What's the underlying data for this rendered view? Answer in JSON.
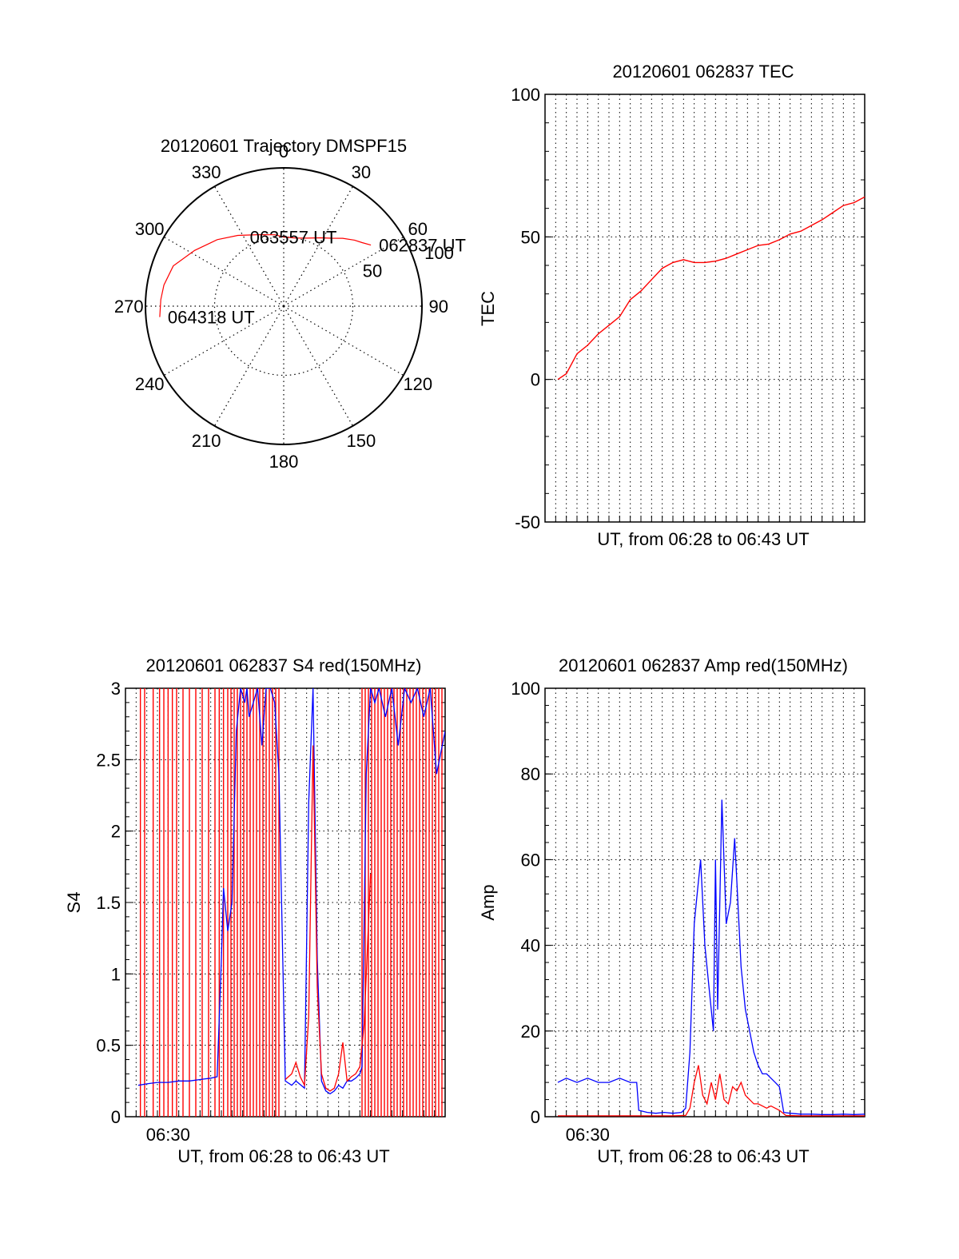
{
  "colors": {
    "red": "#ff0000",
    "blue": "#0000ff",
    "axis": "#000000",
    "grid": "#000000"
  },
  "chart_data": [
    {
      "id": "trajectory",
      "type": "scatter",
      "projection": "polar",
      "title": "20120601 Trajectory DMSPF15",
      "azimuth_labels": [
        "0",
        "30",
        "60",
        "90",
        "120",
        "150",
        "180",
        "210",
        "240",
        "270",
        "300",
        "330"
      ],
      "radial_ticks": [
        {
          "r": 50,
          "label": "50"
        },
        {
          "r": 100,
          "label": "100"
        }
      ],
      "r_max": 100,
      "color": "red",
      "track": [
        {
          "az": 55,
          "r": 77
        },
        {
          "az": 51,
          "r": 73
        },
        {
          "az": 47,
          "r": 70
        },
        {
          "az": 41,
          "r": 65
        },
        {
          "az": 35,
          "r": 60
        },
        {
          "az": 28,
          "r": 56
        },
        {
          "az": 19,
          "r": 52
        },
        {
          "az": 10,
          "r": 50
        },
        {
          "az": 0,
          "r": 50
        },
        {
          "az": 353,
          "r": 52
        },
        {
          "az": 340,
          "r": 55
        },
        {
          "az": 327,
          "r": 61
        },
        {
          "az": 315,
          "r": 68
        },
        {
          "az": 302,
          "r": 76
        },
        {
          "az": 290,
          "r": 85
        },
        {
          "az": 280,
          "r": 88
        },
        {
          "az": 273,
          "r": 89
        },
        {
          "az": 265,
          "r": 90
        }
      ],
      "annotations": [
        {
          "text": "062837 UT",
          "az": 55,
          "r": 77,
          "anchor": "start"
        },
        {
          "text": "063557 UT",
          "az": 0,
          "r": 50,
          "anchor": "middle"
        },
        {
          "text": "064318 UT",
          "az": 265,
          "r": 90,
          "anchor": "start"
        }
      ]
    },
    {
      "id": "tec",
      "type": "line",
      "title": "20120601 062837 TEC",
      "xlabel": "UT, from 06:28 to 06:43 UT",
      "ylabel": "TEC",
      "xlim": [
        0,
        15
      ],
      "ylim": [
        -50,
        100
      ],
      "yticks": [
        -50,
        0,
        50,
        100
      ],
      "x_gridlines": [
        0.5,
        1.0,
        1.5,
        2.0,
        2.5,
        3.0,
        3.5,
        4.0,
        4.5,
        5.0,
        5.5,
        6.0,
        6.5,
        7.0,
        7.5,
        8.0,
        8.5,
        9.0,
        9.5,
        10.0,
        10.5,
        11.0,
        11.5,
        12.0,
        12.5,
        13.0,
        13.5,
        14.0,
        14.5
      ],
      "grid": true,
      "series": [
        {
          "color": "red",
          "x": [
            0.6,
            1.0,
            1.5,
            2.0,
            2.5,
            3.0,
            3.5,
            4.0,
            4.5,
            5.0,
            5.5,
            6.0,
            6.5,
            7.0,
            7.5,
            8.0,
            8.5,
            9.0,
            9.5,
            10.0,
            10.5,
            11.0,
            11.5,
            12.0,
            12.5,
            13.0,
            13.5,
            14.0,
            14.5,
            15.0
          ],
          "y": [
            0,
            2,
            9,
            12,
            16,
            19,
            22,
            28,
            31,
            35,
            39,
            41,
            42,
            41,
            41,
            41.5,
            42.5,
            44,
            45.5,
            47,
            47.5,
            49,
            51,
            52,
            54,
            56,
            58.5,
            61,
            62,
            64
          ]
        }
      ]
    },
    {
      "id": "s4",
      "type": "line",
      "title": "20120601 062837 S4 red(150MHz)",
      "xlabel": "UT, from 06:28 to 06:43 UT",
      "ylabel": "S4",
      "xlim": [
        0,
        15
      ],
      "ylim": [
        0,
        3
      ],
      "yticks": [
        0,
        0.5,
        1,
        1.5,
        2,
        2.5,
        3
      ],
      "ytick_labels": [
        "0",
        "0.5",
        "1",
        "1.5",
        "2",
        "2.5",
        "3"
      ],
      "xtick_labels": [
        {
          "x": 2,
          "label": "06:30"
        }
      ],
      "x_gridlines": [
        0.5,
        1.0,
        1.5,
        2.0,
        2.5,
        3.0,
        3.5,
        4.0,
        4.5,
        5.0,
        5.5,
        6.0,
        6.5,
        7.0,
        7.5,
        8.0,
        8.5,
        9.0,
        9.5,
        10.0,
        10.5,
        11.0,
        11.5,
        12.0,
        12.5,
        13.0,
        13.5,
        14.0,
        14.5
      ],
      "grid": true,
      "red_spikes": [
        0.7,
        0.9,
        1.3,
        1.6,
        1.8,
        2.0,
        2.2,
        2.4,
        2.7,
        3.0,
        3.3,
        3.6,
        3.9,
        4.2,
        4.4,
        4.6,
        4.8,
        4.95,
        5.1,
        5.25,
        5.4,
        5.55,
        5.7,
        5.85,
        6.0,
        6.15,
        6.3,
        6.45,
        6.6,
        6.75,
        6.9,
        7.05,
        7.2,
        11.1,
        11.25,
        11.4,
        11.55,
        11.7,
        11.85,
        12.0,
        12.15,
        12.3,
        12.45,
        12.6,
        12.75,
        12.9,
        13.05,
        13.2,
        13.35,
        13.5,
        13.65,
        13.8,
        13.95,
        14.1,
        14.25,
        14.4,
        14.55,
        14.7,
        14.85
      ],
      "series": [
        {
          "color": "blue",
          "x": [
            0.6,
            1.0,
            1.5,
            2.0,
            2.5,
            3.0,
            3.5,
            4.0,
            4.3,
            4.5,
            4.6,
            4.8,
            5.0,
            5.2,
            5.4,
            5.6,
            5.7,
            5.8,
            6.0,
            6.2,
            6.4,
            6.6,
            6.8,
            7.0,
            7.2,
            7.5,
            7.8,
            8.0,
            8.4,
            8.6,
            8.8,
            9.0,
            9.2,
            9.4,
            9.6,
            9.8,
            10.0,
            10.2,
            10.4,
            10.6,
            10.8,
            11.0,
            11.1,
            11.3,
            11.5,
            11.7,
            11.9,
            12.2,
            12.5,
            12.8,
            13.1,
            13.4,
            13.7,
            14.0,
            14.3,
            14.6,
            15.0
          ],
          "y": [
            0.22,
            0.23,
            0.24,
            0.24,
            0.25,
            0.25,
            0.26,
            0.27,
            0.28,
            1.1,
            1.6,
            1.3,
            1.5,
            2.7,
            3.0,
            2.9,
            3.0,
            2.8,
            2.9,
            3.0,
            2.6,
            3.0,
            3.0,
            2.9,
            2.4,
            0.25,
            0.22,
            0.25,
            0.2,
            2.2,
            3.0,
            1.1,
            0.25,
            0.18,
            0.16,
            0.18,
            0.22,
            0.2,
            0.25,
            0.25,
            0.27,
            0.3,
            0.35,
            2.4,
            3.0,
            2.9,
            3.0,
            2.8,
            3.0,
            2.6,
            3.0,
            2.9,
            3.0,
            2.8,
            3.0,
            2.4,
            2.7
          ]
        },
        {
          "color": "red",
          "x": [
            7.5,
            7.8,
            8.0,
            8.2,
            8.4,
            8.6,
            8.8,
            9.0,
            9.2,
            9.4,
            9.6,
            9.8,
            10.0,
            10.2,
            10.4,
            10.6,
            10.8,
            11.0,
            11.2,
            11.5
          ],
          "y": [
            0.26,
            0.3,
            0.38,
            0.28,
            0.22,
            0.7,
            2.6,
            0.9,
            0.3,
            0.2,
            0.18,
            0.2,
            0.3,
            0.52,
            0.25,
            0.28,
            0.3,
            0.35,
            0.65,
            1.7
          ]
        }
      ]
    },
    {
      "id": "amp",
      "type": "line",
      "title": "20120601 062837 Amp red(150MHz)",
      "xlabel": "UT, from 06:28 to 06:43 UT",
      "ylabel": "Amp",
      "xlim": [
        0,
        15
      ],
      "ylim": [
        0,
        100
      ],
      "yticks": [
        0,
        20,
        40,
        60,
        80,
        100
      ],
      "xtick_labels": [
        {
          "x": 2,
          "label": "06:30"
        }
      ],
      "x_gridlines": [
        0.5,
        1.0,
        1.5,
        2.0,
        2.5,
        3.0,
        3.5,
        4.0,
        4.5,
        5.0,
        5.5,
        6.0,
        6.5,
        7.0,
        7.5,
        8.0,
        8.5,
        9.0,
        9.5,
        10.0,
        10.5,
        11.0,
        11.5,
        12.0,
        12.5,
        13.0,
        13.5,
        14.0,
        14.5
      ],
      "grid": true,
      "series": [
        {
          "color": "blue",
          "x": [
            0.6,
            1.0,
            1.5,
            2.0,
            2.5,
            3.0,
            3.5,
            4.0,
            4.3,
            4.4,
            4.8,
            5.2,
            5.6,
            6.0,
            6.4,
            6.6,
            6.8,
            7.0,
            7.1,
            7.3,
            7.5,
            7.7,
            7.9,
            8.0,
            8.1,
            8.3,
            8.5,
            8.7,
            8.9,
            9.0,
            9.2,
            9.4,
            9.6,
            9.8,
            10.0,
            10.2,
            10.4,
            10.6,
            10.8,
            11.0,
            11.2,
            11.5,
            12.0,
            12.5,
            13.0,
            13.5,
            14.0,
            14.5,
            15.0
          ],
          "y": [
            8,
            9,
            8,
            9,
            8,
            8,
            9,
            8,
            8,
            1.5,
            1,
            0.8,
            1,
            0.8,
            1,
            2,
            15,
            45,
            50,
            60,
            40,
            30,
            20,
            60,
            25,
            74,
            45,
            50,
            65,
            55,
            35,
            25,
            20,
            15,
            12,
            10,
            10,
            9,
            8,
            7,
            1,
            0.8,
            0.6,
            0.6,
            0.5,
            0.5,
            0.6,
            0.5,
            0.6
          ]
        },
        {
          "color": "red",
          "x": [
            0.6,
            2.0,
            4.0,
            4.4,
            5.0,
            6.0,
            6.6,
            6.8,
            7.0,
            7.2,
            7.4,
            7.6,
            7.8,
            8.0,
            8.2,
            8.4,
            8.6,
            8.8,
            9.0,
            9.2,
            9.4,
            9.6,
            9.8,
            10.0,
            10.2,
            10.4,
            10.6,
            10.8,
            11.0,
            11.3,
            12.0,
            13.0,
            14.0,
            15.0
          ],
          "y": [
            0.2,
            0.2,
            0.2,
            0.2,
            0.2,
            0.2,
            0.3,
            2,
            8,
            12,
            5,
            3,
            8,
            4,
            10,
            4,
            3,
            7,
            6,
            8,
            5,
            4,
            3,
            3,
            2.5,
            2,
            2.5,
            2,
            1.5,
            0.3,
            0.2,
            0.2,
            0.2,
            0.2
          ]
        }
      ]
    }
  ]
}
